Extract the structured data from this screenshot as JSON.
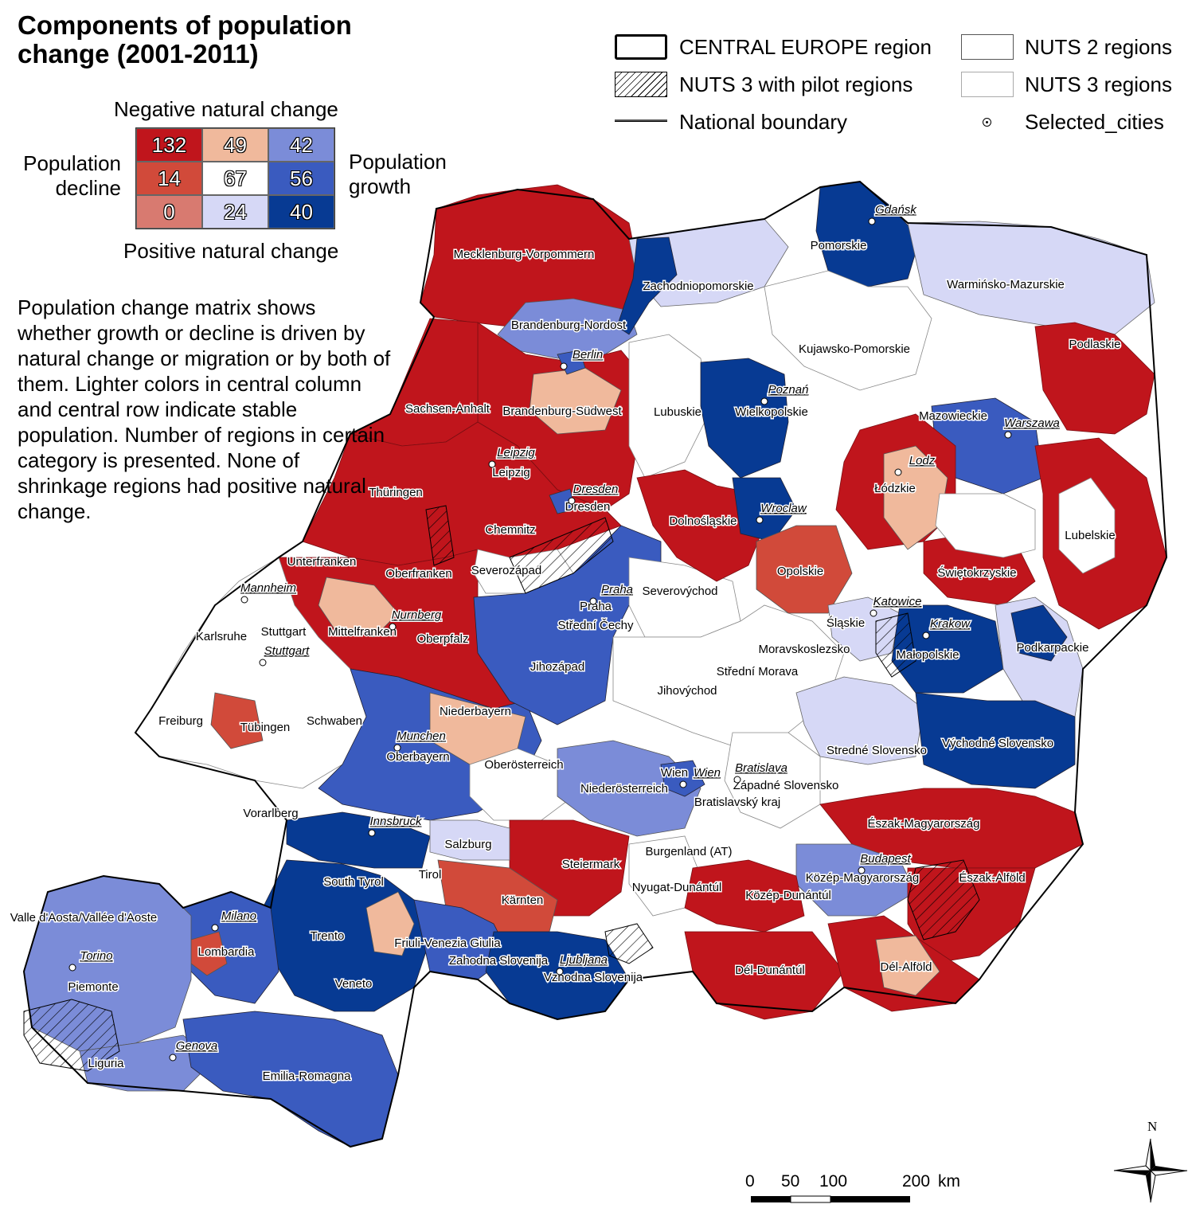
{
  "title_lines": [
    "Components of population",
    "change (2001-2011)"
  ],
  "matrix": {
    "top_label": "Negative natural change",
    "bottom_label": "Positive natural change",
    "left_label_lines": [
      "Population",
      "decline"
    ],
    "right_label_lines": [
      "Population",
      "growth"
    ],
    "rows": [
      [
        {
          "value": "132",
          "color": "#c0151c"
        },
        {
          "value": "49",
          "color": "#f0b99c"
        },
        {
          "value": "42",
          "color": "#7b8cd8"
        }
      ],
      [
        {
          "value": "14",
          "color": "#d14a3a"
        },
        {
          "value": "67",
          "color": "#ffffff"
        },
        {
          "value": "56",
          "color": "#3a5bbf"
        }
      ],
      [
        {
          "value": "0",
          "color": "#d87a70"
        },
        {
          "value": "24",
          "color": "#d6d8f6"
        },
        {
          "value": "40",
          "color": "#073a93"
        }
      ]
    ]
  },
  "description": "Population change matrix shows whether growth or decline is driven by natural change or migration or by both of them. Lighter colors in central column and central row indicate stable population. Number of regions in certain category is presented. None of shrinkage regions had positive natural change.",
  "legend": {
    "central_europe": "CENTRAL EUROPE region",
    "nuts2": "NUTS 2 regions",
    "pilot": "NUTS 3 with pilot regions",
    "nuts3": "NUTS 3 regions",
    "national_boundary": "National boundary",
    "selected_cities": "Selected_cities"
  },
  "scale_labels": [
    "0",
    "50",
    "100",
    "200",
    "km"
  ],
  "north_label": "N",
  "colors": {
    "decline_neg": "#c0151c",
    "stable_neg": "#f0b99c",
    "growth_neg": "#7b8cd8",
    "decline_stable": "#d14a3a",
    "stable": "#ffffff",
    "growth_stable": "#3a5bbf",
    "decline_pos": "#d87a70",
    "stable_pos": "#d6d8f6",
    "growth_pos": "#073a93"
  },
  "regions": [
    "Mecklenburg-Vorpommern",
    "Brandenburg-Nordost",
    "Brandenburg-Südwest",
    "Sachsen-Anhalt",
    "Thüringen",
    "Leipzig",
    "Dresden",
    "Chemnitz",
    "Unterfranken",
    "Oberfranken",
    "Mittelfranken",
    "Oberpfalz",
    "Stuttgart",
    "Karlsruhe",
    "Freiburg",
    "Tübingen",
    "Schwaben",
    "Niederbayern",
    "Oberbayern",
    "Oberösterreich",
    "Niederösterreich",
    "Wien",
    "Burgenland (AT)",
    "Salzburg",
    "Tirol",
    "Vorarlberg",
    "Steiermark",
    "Kärnten",
    "Severozápad",
    "Severovýchod",
    "Praha",
    "Střední Čechy",
    "Jihozápad",
    "Jihovýchod",
    "Střední Morava",
    "Moravskoslezsko",
    "Zachodniopomorskie",
    "Pomorskie",
    "Warmińsko-Mazurskie",
    "Kujawsko-Pomorskie",
    "Podlaskie",
    "Lubuskie",
    "Wielkopolskie",
    "Mazowieckie",
    "Łódzkie",
    "Dolnośląskie",
    "Opolskie",
    "Świętokrzyskie",
    "Lubelskie",
    "Śląskie",
    "Małopolskie",
    "Podkarpackie",
    "Stredné Slovensko",
    "Východné Slovensko",
    "Západné Slovensko",
    "Bratislavský kraj",
    "Észak-Magyarország",
    "Észak-Alföld",
    "Közép-Magyarország",
    "Közép-Dunántúl",
    "Nyugat-Dunántúl",
    "Dél-Dunántúl",
    "Dél-Alföld",
    "South Tyrol",
    "Trento",
    "Veneto",
    "Friuli-Venezia Giulia",
    "Lombardia",
    "Piemonte",
    "Valle d'Aosta/Vallée d'Aoste",
    "Liguria",
    "Emilia-Romagna",
    "Zahodna Slovenija",
    "Vzhodna Slovenija"
  ],
  "cities": [
    "Gdańsk",
    "Berlin",
    "Poznań",
    "Warszawa",
    "Leipzig",
    "Dresden",
    "Lodz",
    "Wroclaw",
    "Praha",
    "Katowice",
    "Krakow",
    "Mannheim",
    "Nurnberg",
    "Stuttgart",
    "Munchen",
    "Bratislava",
    "Wien",
    "Innsbruck",
    "Budapest",
    "Milano",
    "Torino",
    "Genova",
    "Ljubljana"
  ]
}
